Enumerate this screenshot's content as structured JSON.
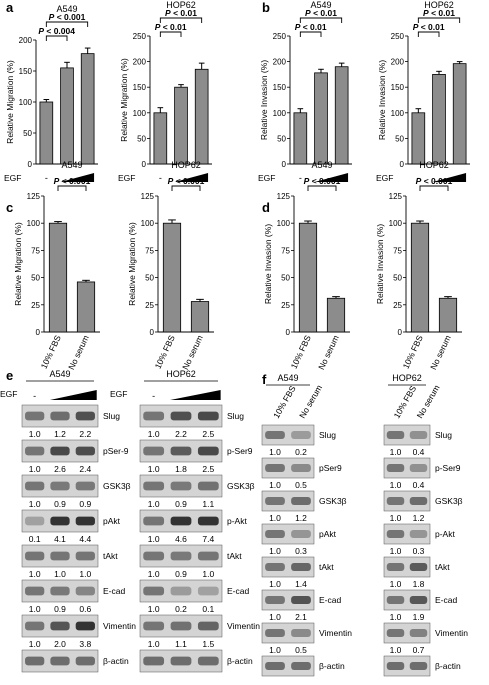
{
  "chart_data": [
    {
      "panel": "a",
      "type": "bar",
      "title": "A549",
      "ylabel": "Relative Migration (%)",
      "ylim": [
        0,
        200
      ],
      "yticks": [
        "0",
        "50",
        "100",
        "150",
        "200"
      ],
      "xcaption": "EGF",
      "x_markers": [
        "-"
      ],
      "ramp": true,
      "values": [
        100,
        155,
        178
      ],
      "errors": [
        4,
        9,
        9
      ],
      "sig": [
        {
          "from": 0,
          "to": 2,
          "label": "P < 0.001"
        },
        {
          "from": 0,
          "to": 1,
          "label": "P < 0.004"
        }
      ]
    },
    {
      "panel": "",
      "type": "bar",
      "title": "HOP62",
      "ylabel": "Relative Migration (%)",
      "ylim": [
        0,
        250
      ],
      "yticks": [
        "0",
        "50",
        "100",
        "150",
        "200",
        "250"
      ],
      "xcaption": "EGF",
      "x_markers": [
        "-"
      ],
      "ramp": true,
      "values": [
        100,
        150,
        185
      ],
      "errors": [
        10,
        5,
        12
      ],
      "sig": [
        {
          "from": 0,
          "to": 2,
          "label": "P < 0.01"
        },
        {
          "from": 0,
          "to": 1,
          "label": "P < 0.01"
        }
      ]
    },
    {
      "panel": "b",
      "type": "bar",
      "title": "A549",
      "ylabel": "Relative Invasion (%)",
      "ylim": [
        0,
        250
      ],
      "yticks": [
        "0",
        "50",
        "100",
        "150",
        "200",
        "250"
      ],
      "xcaption": "EGF",
      "x_markers": [
        "-"
      ],
      "ramp": true,
      "values": [
        100,
        178,
        190
      ],
      "errors": [
        8,
        7,
        7
      ],
      "sig": [
        {
          "from": 0,
          "to": 2,
          "label": "P < 0.01"
        },
        {
          "from": 0,
          "to": 1,
          "label": "P < 0.01"
        }
      ]
    },
    {
      "panel": "",
      "type": "bar",
      "title": "HOP62",
      "ylabel": "Relative Invasion (%)",
      "ylim": [
        0,
        250
      ],
      "yticks": [
        "0",
        "50",
        "100",
        "150",
        "200",
        "250"
      ],
      "xcaption": "EGF",
      "x_markers": [
        "-"
      ],
      "ramp": true,
      "values": [
        100,
        175,
        196
      ],
      "errors": [
        8,
        6,
        4
      ],
      "sig": [
        {
          "from": 0,
          "to": 2,
          "label": "P < 0.01"
        },
        {
          "from": 0,
          "to": 1,
          "label": "P < 0.01"
        }
      ]
    },
    {
      "panel": "c",
      "type": "bar",
      "title": "A549",
      "ylabel": "Relative Migration (%)",
      "ylim": [
        0,
        125
      ],
      "yticks": [
        "0",
        "25",
        "50",
        "75",
        "100",
        "125"
      ],
      "categories": [
        "10% FBS",
        "No serum"
      ],
      "values": [
        100,
        46
      ],
      "errors": [
        1.5,
        1.5
      ],
      "sig": [
        {
          "from": 0,
          "to": 1,
          "label": "P < 0.001"
        }
      ]
    },
    {
      "panel": "",
      "type": "bar",
      "title": "HOP62",
      "ylabel": "Relative Migration (%)",
      "ylim": [
        0,
        125
      ],
      "yticks": [
        "0",
        "25",
        "50",
        "75",
        "100",
        "125"
      ],
      "categories": [
        "10% FBS",
        "No serum"
      ],
      "values": [
        100,
        28
      ],
      "errors": [
        3,
        2
      ],
      "sig": [
        {
          "from": 0,
          "to": 1,
          "label": "P < 0.001"
        }
      ]
    },
    {
      "panel": "d",
      "type": "bar",
      "title": "A549",
      "ylabel": "Relative Invasion (%)",
      "ylim": [
        0,
        125
      ],
      "yticks": [
        "0",
        "25",
        "50",
        "75",
        "100",
        "125"
      ],
      "categories": [
        "10% FBS",
        "No serum"
      ],
      "values": [
        100,
        31
      ],
      "errors": [
        2,
        1.5
      ],
      "sig": [
        {
          "from": 0,
          "to": 1,
          "label": "P < 0.001"
        }
      ]
    },
    {
      "panel": "",
      "type": "bar",
      "title": "HOP62",
      "ylabel": "Relative Invasion (%)",
      "ylim": [
        0,
        125
      ],
      "yticks": [
        "0",
        "25",
        "50",
        "75",
        "100",
        "125"
      ],
      "categories": [
        "10% FBS",
        "No serum"
      ],
      "values": [
        100,
        31
      ],
      "errors": [
        2,
        1.5
      ],
      "sig": [
        {
          "from": 0,
          "to": 1,
          "label": "P < 0.001"
        }
      ]
    }
  ],
  "blots": {
    "e": {
      "panel": "e",
      "left": {
        "title": "A549",
        "treatment": "EGF",
        "lanes_header": [
          "-"
        ],
        "ramp": true,
        "bands": [
          {
            "label": "Slug",
            "values": [
              "1.0",
              "1.2",
              "2.2"
            ]
          },
          {
            "label": "pSer-9",
            "values": [
              "1.0",
              "2.6",
              "2.4"
            ]
          },
          {
            "label": "GSK3β",
            "values": [
              "1.0",
              "0.9",
              "0.9"
            ]
          },
          {
            "label": "pAkt",
            "values": [
              "0.1",
              "4.1",
              "4.4"
            ]
          },
          {
            "label": "tAkt",
            "values": [
              "1.0",
              "1.0",
              "1.0"
            ]
          },
          {
            "label": "E-cad",
            "values": [
              "1.0",
              "0.9",
              "0.6"
            ]
          },
          {
            "label": "Vimentin",
            "values": [
              "1.0",
              "2.0",
              "3.8"
            ]
          },
          {
            "label": "β-actin",
            "values": []
          }
        ]
      },
      "right": {
        "title": "HOP62",
        "treatment": "EGF",
        "lanes_header": [
          "-"
        ],
        "ramp": true,
        "bands": [
          {
            "label": "Slug",
            "values": [
              "1.0",
              "2.2",
              "2.5"
            ]
          },
          {
            "label": "p-Ser9",
            "values": [
              "1.0",
              "1.8",
              "2.5"
            ]
          },
          {
            "label": "GSK3β",
            "values": [
              "1.0",
              "0.9",
              "1.1"
            ]
          },
          {
            "label": "p-Akt",
            "values": [
              "1.0",
              "4.6",
              "7.4"
            ]
          },
          {
            "label": "tAkt",
            "values": [
              "1.0",
              "0.9",
              "1.0"
            ]
          },
          {
            "label": "E-cad",
            "values": [
              "1.0",
              "0.2",
              "0.1"
            ]
          },
          {
            "label": "Vimentin",
            "values": [
              "1.0",
              "1.1",
              "1.5"
            ]
          },
          {
            "label": "β-actin",
            "values": []
          }
        ]
      }
    },
    "f": {
      "panel": "f",
      "left": {
        "title": "A549",
        "lanes_header": [
          "10% FBS",
          "No serum"
        ],
        "bands": [
          {
            "label": "Slug",
            "values": [
              "1.0",
              "0.2"
            ]
          },
          {
            "label": "pSer9",
            "values": [
              "1.0",
              "0.5"
            ]
          },
          {
            "label": "GSK3β",
            "values": [
              "1.0",
              "1.2"
            ]
          },
          {
            "label": "pAkt",
            "values": [
              "1.0",
              "0.3"
            ]
          },
          {
            "label": "tAkt",
            "values": [
              "1.0",
              "1.4"
            ]
          },
          {
            "label": "E-cad",
            "values": [
              "1.0",
              "2.1"
            ]
          },
          {
            "label": "Vimentin",
            "values": [
              "1.0",
              "0.5"
            ]
          },
          {
            "label": "β-actin",
            "values": []
          }
        ]
      },
      "right": {
        "title": "HOP62",
        "lanes_header": [
          "10% FBS",
          "No serum"
        ],
        "bands": [
          {
            "label": "Slug",
            "values": [
              "1.0",
              "0.4"
            ]
          },
          {
            "label": "p-Ser9",
            "values": [
              "1.0",
              "0.4"
            ]
          },
          {
            "label": "GSK3β",
            "values": [
              "1.0",
              "1.2"
            ]
          },
          {
            "label": "p-Akt",
            "values": [
              "1.0",
              "0.3"
            ]
          },
          {
            "label": "tAkt",
            "values": [
              "1.0",
              "1.8"
            ]
          },
          {
            "label": "E-cad",
            "values": [
              "1.0",
              "1.9"
            ]
          },
          {
            "label": "Vimentin",
            "values": [
              "1.0",
              "0.7"
            ]
          },
          {
            "label": "β-actin",
            "values": []
          }
        ]
      }
    }
  },
  "style": {
    "bar_fill": "#8c8c8c",
    "bar_stroke": "#000000",
    "blot_bg": "#d4d4d4",
    "band_color": "#2a2a2a"
  }
}
